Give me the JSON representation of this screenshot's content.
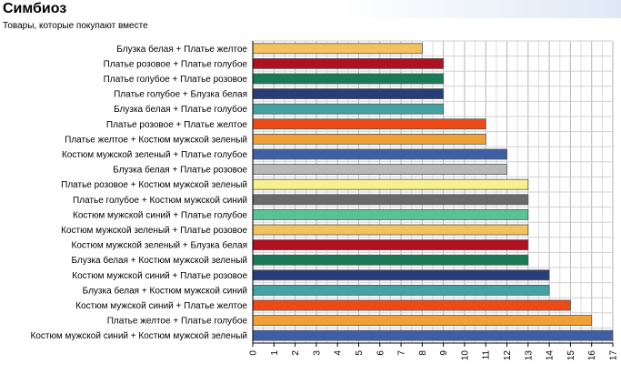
{
  "header": {
    "title": "Симбиоз",
    "subtitle": "Товары, которые покупают вместе"
  },
  "chart_data": {
    "type": "bar",
    "orientation": "horizontal",
    "categories": [
      "Блузка белая + Платье желтое",
      "Платье розовое + Платье голубое",
      "Платье голубое + Платье розовое",
      "Платье голубое + Блузка белая",
      "Блузка белая + Платье голубое",
      "Платье розовое + Платье желтое",
      "Платье желтое + Костюм мужской зеленый",
      "Костюм мужской зеленый + Платье голубое",
      "Блузка белая + Платье розовое",
      "Платье розовое + Костюм мужской зеленый",
      "Платье голубое + Костюм мужской синий",
      "Костюм мужской синий + Платье голубое",
      "Костюм мужской зеленый + Платье розовое",
      "Костюм мужской зеленый + Блузка белая",
      "Блузка белая + Костюм мужской зеленый",
      "Костюм мужской синий + Платье розовое",
      "Блузка белая + Костюм мужской синий",
      "Костюм мужской синий + Платье желтое",
      "Платье желтое + Платье голубое",
      "Костюм мужской синий + Костюм мужской зеленый"
    ],
    "values": [
      8,
      9,
      9,
      9,
      9,
      11,
      11,
      12,
      12,
      13,
      13,
      13,
      13,
      13,
      13,
      14,
      14,
      15,
      16,
      17
    ],
    "colors": [
      "#f2c25e",
      "#b01020",
      "#1a7a55",
      "#283e78",
      "#45a2a2",
      "#ee4a15",
      "#f0a038",
      "#3f5fa5",
      "#b8b8b8",
      "#f8ef8e",
      "#6a6a6a",
      "#5cc196",
      "#f2c25e",
      "#b01020",
      "#1a7a55",
      "#283e78",
      "#45a2a2",
      "#ee4a15",
      "#f0a038",
      "#3f5fa5"
    ],
    "xlim": [
      0,
      17
    ],
    "xticks": [
      0,
      1,
      2,
      3,
      4,
      5,
      6,
      7,
      8,
      9,
      10,
      11,
      12,
      13,
      14,
      15,
      16,
      17
    ],
    "grid": true,
    "legend": "none"
  }
}
